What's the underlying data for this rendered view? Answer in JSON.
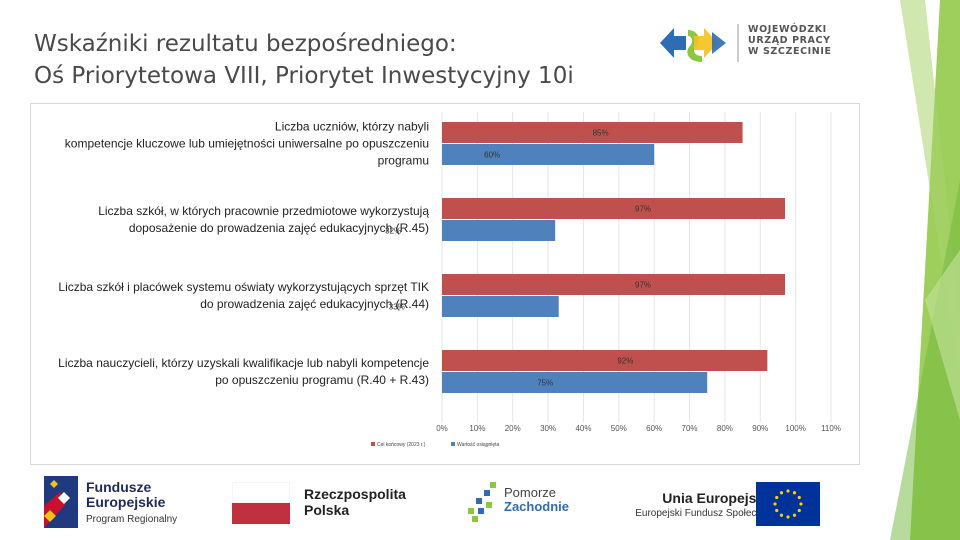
{
  "title": {
    "line1": "Wskaźniki rezultatu bezpośredniego:",
    "line2": "Oś Priorytetowa VIII, Priorytet Inwestycyjny 10i"
  },
  "header_logo": {
    "line1": "WOJEWÓDZKI",
    "line2": "URZĄD PRACY",
    "line3": "W SZCZECINIE"
  },
  "colors": {
    "target": "#c0504d",
    "achieved": "#4f81bd",
    "accent_green": "#8dc63f",
    "eu_blue": "#003399"
  },
  "chart_data": {
    "type": "bar",
    "orientation": "horizontal",
    "categories": [
      [
        "Liczba uczniów, którzy nabyli",
        "kompetencje kluczowe lub umiejętności uniwersalne po opuszczeniu",
        "programu"
      ],
      [
        "Liczba szkół, w których pracownie przedmiotowe wykorzystują",
        "doposażenie do prowadzenia zajęć edukacyjnych (R.45)"
      ],
      [
        "Liczba szkół i placówek systemu oświaty wykorzystujących sprzęt TIK",
        "do prowadzenia zajęć edukacyjnych (R.44)"
      ],
      [
        "Liczba nauczycieli, którzy uzyskali kwalifikacje lub nabyli kompetencje",
        "po opuszczeniu programu (R.40 + R.43)"
      ]
    ],
    "series": [
      {
        "name": "Cel końcowy (2023 r.)",
        "values": [
          85,
          97,
          97,
          92
        ],
        "labels": [
          "85%",
          "97%",
          "97%",
          "92%"
        ]
      },
      {
        "name": "Wartość osiągnięta",
        "values": [
          60,
          32,
          33,
          75
        ],
        "labels": [
          "60%",
          "32%",
          "33%",
          "75%"
        ]
      }
    ],
    "xlim": [
      0,
      110
    ],
    "xticks": [
      "0%",
      "10%",
      "20%",
      "30%",
      "40%",
      "50%",
      "60%",
      "70%",
      "80%",
      "90%",
      "100%",
      "110%"
    ],
    "legend_position": "bottom-left"
  },
  "footer": {
    "fe_line1": "Fundusze",
    "fe_line2": "Europejskie",
    "fe_line3": "Program Regionalny",
    "rp_line1": "Rzeczpospolita",
    "rp_line2": "Polska",
    "pz_line1": "Pomorze",
    "pz_line2": "Zachodnie",
    "ue_line1": "Unia Europejska",
    "ue_line2": "Europejski Fundusz Społeczny"
  }
}
